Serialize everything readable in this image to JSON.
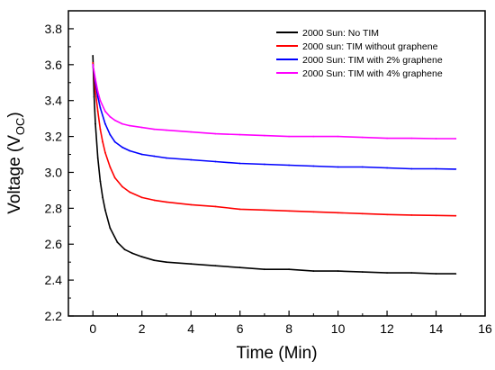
{
  "chart_data": {
    "type": "line",
    "title": "",
    "xlabel": "Time (Min)",
    "ylabel": "Voltage (V",
    "ylabel_sub": "OC",
    "ylabel_close": ")",
    "xlim": [
      -1,
      16
    ],
    "ylim": [
      2.2,
      3.9
    ],
    "xticks": [
      "0",
      "2",
      "4",
      "6",
      "8",
      "10",
      "12",
      "14",
      "16"
    ],
    "yticks": [
      "2.2",
      "2.4",
      "2.6",
      "2.8",
      "3.0",
      "3.2",
      "3.4",
      "3.6",
      "3.8"
    ],
    "grid": false,
    "legend_position": "top-right",
    "series": [
      {
        "name": "2000 Sun: No TIM",
        "color": "#000000",
        "x": [
          0,
          0.05,
          0.1,
          0.2,
          0.3,
          0.4,
          0.5,
          0.7,
          1.0,
          1.3,
          1.6,
          2.0,
          2.5,
          3.0,
          4.0,
          5.0,
          6.0,
          7.0,
          8.0,
          9.0,
          10.0,
          11.0,
          12.0,
          13.0,
          14.0,
          14.8
        ],
        "values": [
          3.65,
          3.42,
          3.27,
          3.08,
          2.95,
          2.86,
          2.79,
          2.69,
          2.61,
          2.57,
          2.55,
          2.53,
          2.51,
          2.5,
          2.49,
          2.48,
          2.47,
          2.46,
          2.46,
          2.45,
          2.45,
          2.445,
          2.44,
          2.44,
          2.435,
          2.435
        ]
      },
      {
        "name": "2000 sun: TIM without graphene",
        "color": "#ff0000",
        "x": [
          0,
          0.1,
          0.2,
          0.3,
          0.4,
          0.5,
          0.7,
          0.9,
          1.2,
          1.5,
          2.0,
          2.5,
          3.0,
          4.0,
          5.0,
          6.0,
          7.0,
          8.0,
          9.0,
          10.0,
          11.0,
          12.0,
          13.0,
          14.0,
          14.8
        ],
        "values": [
          3.61,
          3.45,
          3.34,
          3.24,
          3.17,
          3.11,
          3.03,
          2.97,
          2.92,
          2.89,
          2.86,
          2.845,
          2.835,
          2.82,
          2.81,
          2.795,
          2.79,
          2.785,
          2.78,
          2.775,
          2.77,
          2.765,
          2.762,
          2.76,
          2.758
        ]
      },
      {
        "name": "2000 Sun: TIM with 2% graphene",
        "color": "#0000ff",
        "x": [
          0,
          0.1,
          0.2,
          0.3,
          0.5,
          0.7,
          0.9,
          1.2,
          1.5,
          2.0,
          2.5,
          3.0,
          4.0,
          5.0,
          6.0,
          7.0,
          8.0,
          9.0,
          10.0,
          11.0,
          12.0,
          13.0,
          14.0,
          14.8
        ],
        "values": [
          3.6,
          3.5,
          3.42,
          3.36,
          3.27,
          3.21,
          3.17,
          3.14,
          3.12,
          3.1,
          3.09,
          3.08,
          3.07,
          3.06,
          3.05,
          3.045,
          3.04,
          3.035,
          3.03,
          3.03,
          3.025,
          3.02,
          3.02,
          3.018
        ]
      },
      {
        "name": "2000 Sun: TIM with 4% graphene",
        "color": "#ff00ff",
        "x": [
          0,
          0.1,
          0.2,
          0.3,
          0.5,
          0.7,
          0.9,
          1.2,
          1.5,
          2.0,
          2.5,
          3.0,
          4.0,
          5.0,
          6.0,
          7.0,
          8.0,
          9.0,
          10.0,
          11.0,
          12.0,
          13.0,
          14.0,
          14.8
        ],
        "values": [
          3.6,
          3.52,
          3.45,
          3.4,
          3.34,
          3.31,
          3.29,
          3.27,
          3.26,
          3.25,
          3.24,
          3.235,
          3.225,
          3.215,
          3.21,
          3.205,
          3.2,
          3.2,
          3.2,
          3.195,
          3.19,
          3.19,
          3.188,
          3.188
        ]
      }
    ]
  }
}
